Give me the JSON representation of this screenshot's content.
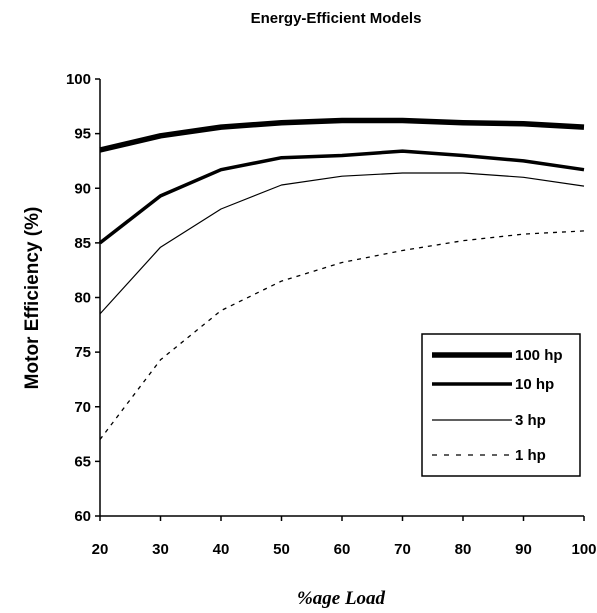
{
  "chart_data": {
    "type": "line",
    "title": "Energy-Efficient Models",
    "xlabel": "%age Load",
    "ylabel": "Motor Efficiency (%)",
    "x": [
      20,
      30,
      40,
      50,
      60,
      70,
      80,
      90,
      100
    ],
    "xlim": [
      20,
      100
    ],
    "ylim": [
      60,
      100
    ],
    "xticks": [
      "20",
      "30",
      "40",
      "50",
      "60",
      "70",
      "80",
      "90",
      "100"
    ],
    "yticks": [
      "60",
      "65",
      "70",
      "75",
      "80",
      "85",
      "90",
      "95",
      "100"
    ],
    "grid": false,
    "legend_position": "bottom-right",
    "series": [
      {
        "name": "100 hp",
        "values": [
          93.5,
          94.8,
          95.6,
          96.0,
          96.2,
          96.2,
          96.0,
          95.9,
          95.6
        ],
        "style": "heavy"
      },
      {
        "name": "10 hp",
        "values": [
          85.0,
          89.3,
          91.7,
          92.8,
          93.0,
          93.4,
          93.0,
          92.5,
          91.7
        ],
        "style": "bold"
      },
      {
        "name": "3 hp",
        "values": [
          78.5,
          84.6,
          88.1,
          90.3,
          91.1,
          91.4,
          91.4,
          91.0,
          90.2
        ],
        "style": "thin"
      },
      {
        "name": "1 hp",
        "values": [
          67.0,
          74.3,
          78.8,
          81.5,
          83.2,
          84.3,
          85.2,
          85.8,
          86.1
        ],
        "style": "dashed"
      }
    ],
    "colors": {
      "line": "#000000",
      "background": "#ffffff"
    }
  }
}
